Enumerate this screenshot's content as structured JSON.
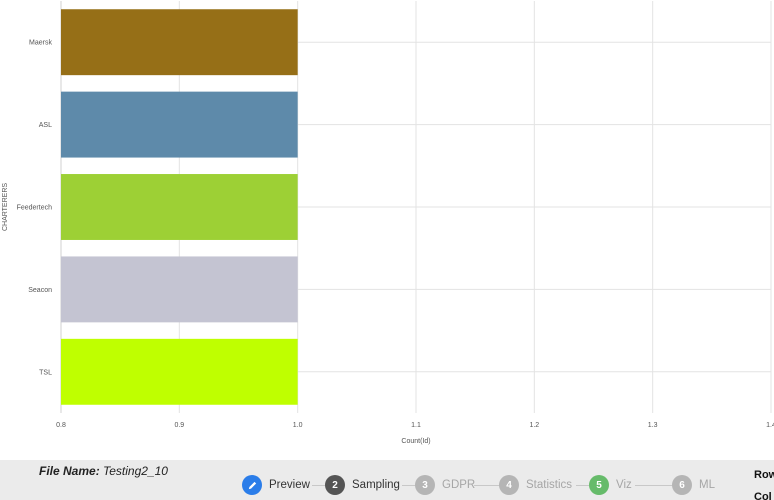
{
  "chart_data": {
    "type": "bar",
    "orientation": "horizontal",
    "categories": [
      "Maersk",
      "ASL",
      "Feedertech",
      "Seacon",
      "TSL"
    ],
    "values": [
      1.0,
      1.0,
      1.0,
      1.0,
      1.0
    ],
    "colors": [
      "#966f17",
      "#5e8aaa",
      "#9dd035",
      "#c4c4d2",
      "#bfff00"
    ],
    "xlabel": "Count(Id)",
    "ylabel": "CHARTERERS",
    "xlim": [
      0.8,
      1.4
    ],
    "xticks": [
      "0.8",
      "0.9",
      "1.0",
      "1.1",
      "1.2",
      "1.3",
      "1.4"
    ],
    "grid": true
  },
  "footer": {
    "file_name_label": "File Name:",
    "file_name_value": "Testing2_10",
    "steps": [
      {
        "number": "",
        "label": "Preview",
        "icon": "pencil-icon",
        "color": "#2b7de9",
        "text_color": "#333333"
      },
      {
        "number": "2",
        "label": "Sampling",
        "color": "#555555",
        "text_color": "#333333"
      },
      {
        "number": "3",
        "label": "GDPR",
        "color": "#b5b5b5",
        "text_color": "#a6a6a6"
      },
      {
        "number": "4",
        "label": "Statistics",
        "color": "#b5b5b5",
        "text_color": "#a6a6a6"
      },
      {
        "number": "5",
        "label": "Viz",
        "color": "#66bb6a",
        "text_color": "#a6a6a6"
      },
      {
        "number": "6",
        "label": "ML",
        "color": "#b5b5b5",
        "text_color": "#a6a6a6"
      }
    ],
    "row_info": [
      "Row",
      "Col"
    ]
  }
}
